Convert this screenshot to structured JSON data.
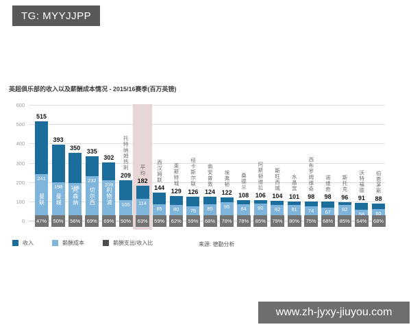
{
  "badges": {
    "tg": "TG: MYYJJPP",
    "website": "www.zh-jyxy-jiuyou.com"
  },
  "chart": {
    "title": "英超俱乐部的收入以及薪酬成本情况 - 2015/16赛季(百万英镑)",
    "source": "来源: 德勤分析"
  },
  "chart_data": {
    "type": "bar",
    "title": "英超俱乐部的收入以及薪酬成本情况 - 2015/16赛季(百万英镑)",
    "unit": "百万英镑",
    "ylim": [
      0,
      600
    ],
    "yticks": [
      0,
      100,
      200,
      300,
      400,
      500,
      600
    ],
    "grid": true,
    "legend_position": "bottom",
    "highlight_category": "平均",
    "categories": [
      "曼联",
      "曼城",
      "阿森纳",
      "切尔西",
      "利物浦",
      "托特纳姆热刺",
      "平均",
      "西汉姆联",
      "莱斯特城",
      "纽卡斯尔联",
      "南安普敦",
      "埃弗顿",
      "桑德兰",
      "阿斯顿维拉",
      "斯旺西城",
      "水晶宫",
      "西布罗姆维奇",
      "诺维奇",
      "斯托克",
      "沃特福德",
      "伯恩茅斯"
    ],
    "series": [
      {
        "name": "收入",
        "color": "#1b6d9c",
        "values": [
          515,
          393,
          350,
          335,
          302,
          209,
          182,
          144,
          129,
          126,
          124,
          122,
          108,
          106,
          104,
          101,
          98,
          98,
          96,
          91,
          88
        ]
      },
      {
        "name": "薪酬成本",
        "color": "#7fb5db",
        "values": [
          241,
          198,
          195,
          232,
          209,
          105,
          114,
          85,
          80,
          75,
          85,
          95,
          84,
          90,
          82,
          81,
          74,
          67,
          82,
          58,
          60
        ]
      },
      {
        "name": "薪酬支出/收入比",
        "color": "#737373",
        "values": [
          "47%",
          "50%",
          "56%",
          "69%",
          "69%",
          "50%",
          "63%",
          "59%",
          "62%",
          "59%",
          "68%",
          "78%",
          "78%",
          "85%",
          "79%",
          "80%",
          "75%",
          "68%",
          "85%",
          "64%",
          "68%"
        ]
      }
    ],
    "highlight_color": "#e8d5d5"
  }
}
